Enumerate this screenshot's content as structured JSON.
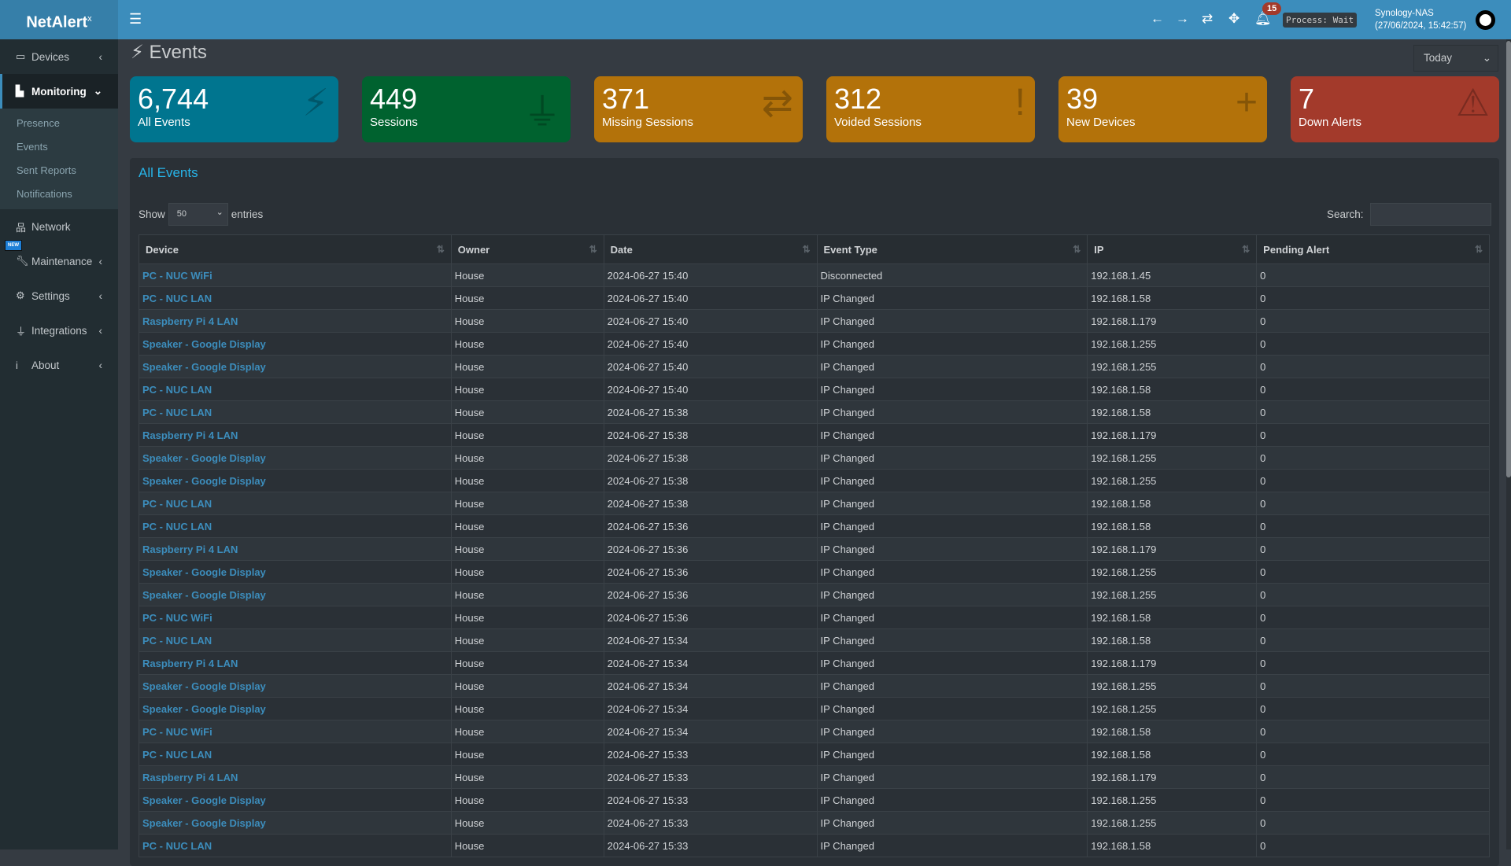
{
  "app": {
    "logo": "NetAlert",
    "logo_sup": "x"
  },
  "header": {
    "notif_count": "15",
    "process": "Process: Wait",
    "host": "Synology-NAS",
    "datetime": "(27/06/2024, 15:42:57)"
  },
  "sidebar": {
    "items": [
      {
        "label": "Devices",
        "icon": "laptop-icon"
      },
      {
        "label": "Monitoring",
        "icon": "chart-icon",
        "sub": [
          "Presence",
          "Events",
          "Sent Reports",
          "Notifications"
        ]
      },
      {
        "label": "Network",
        "icon": "network-icon"
      },
      {
        "label": "Maintenance",
        "icon": "wrench-icon",
        "badge": "NEW"
      },
      {
        "label": "Settings",
        "icon": "gear-icon"
      },
      {
        "label": "Integrations",
        "icon": "plug-icon"
      },
      {
        "label": "About",
        "icon": "info-icon"
      }
    ]
  },
  "page": {
    "title": "Events",
    "period": "Today"
  },
  "cards": [
    {
      "value": "6,744",
      "label": "All Events",
      "color": "#00758f"
    },
    {
      "value": "449",
      "label": "Sessions",
      "color": "#00622f"
    },
    {
      "value": "371",
      "label": "Missing Sessions",
      "color": "#b3720a"
    },
    {
      "value": "312",
      "label": "Voided Sessions",
      "color": "#b3720a"
    },
    {
      "value": "39",
      "label": "New Devices",
      "color": "#b3720a"
    },
    {
      "value": "7",
      "label": "Down Alerts",
      "color": "#a33a2b"
    }
  ],
  "table": {
    "title": "All Events",
    "show": "Show",
    "entries_value": "50",
    "entries": "entries",
    "search_label": "Search:",
    "columns": [
      "Device",
      "Owner",
      "Date",
      "Event Type",
      "IP",
      "Pending Alert"
    ],
    "rows": [
      [
        "PC - NUC WiFi",
        "House",
        "2024-06-27  15:40",
        "Disconnected",
        "192.168.1.45",
        "0"
      ],
      [
        "PC - NUC LAN",
        "House",
        "2024-06-27  15:40",
        "IP Changed",
        "192.168.1.58",
        "0"
      ],
      [
        "Raspberry Pi 4 LAN",
        "House",
        "2024-06-27  15:40",
        "IP Changed",
        "192.168.1.179",
        "0"
      ],
      [
        "Speaker - Google Display",
        "House",
        "2024-06-27  15:40",
        "IP Changed",
        "192.168.1.255",
        "0"
      ],
      [
        "Speaker - Google Display",
        "House",
        "2024-06-27  15:40",
        "IP Changed",
        "192.168.1.255",
        "0"
      ],
      [
        "PC - NUC LAN",
        "House",
        "2024-06-27  15:40",
        "IP Changed",
        "192.168.1.58",
        "0"
      ],
      [
        "PC - NUC LAN",
        "House",
        "2024-06-27  15:38",
        "IP Changed",
        "192.168.1.58",
        "0"
      ],
      [
        "Raspberry Pi 4 LAN",
        "House",
        "2024-06-27  15:38",
        "IP Changed",
        "192.168.1.179",
        "0"
      ],
      [
        "Speaker - Google Display",
        "House",
        "2024-06-27  15:38",
        "IP Changed",
        "192.168.1.255",
        "0"
      ],
      [
        "Speaker - Google Display",
        "House",
        "2024-06-27  15:38",
        "IP Changed",
        "192.168.1.255",
        "0"
      ],
      [
        "PC - NUC LAN",
        "House",
        "2024-06-27  15:38",
        "IP Changed",
        "192.168.1.58",
        "0"
      ],
      [
        "PC - NUC LAN",
        "House",
        "2024-06-27  15:36",
        "IP Changed",
        "192.168.1.58",
        "0"
      ],
      [
        "Raspberry Pi 4 LAN",
        "House",
        "2024-06-27  15:36",
        "IP Changed",
        "192.168.1.179",
        "0"
      ],
      [
        "Speaker - Google Display",
        "House",
        "2024-06-27  15:36",
        "IP Changed",
        "192.168.1.255",
        "0"
      ],
      [
        "Speaker - Google Display",
        "House",
        "2024-06-27  15:36",
        "IP Changed",
        "192.168.1.255",
        "0"
      ],
      [
        "PC - NUC WiFi",
        "House",
        "2024-06-27  15:36",
        "IP Changed",
        "192.168.1.58",
        "0"
      ],
      [
        "PC - NUC LAN",
        "House",
        "2024-06-27  15:34",
        "IP Changed",
        "192.168.1.58",
        "0"
      ],
      [
        "Raspberry Pi 4 LAN",
        "House",
        "2024-06-27  15:34",
        "IP Changed",
        "192.168.1.179",
        "0"
      ],
      [
        "Speaker - Google Display",
        "House",
        "2024-06-27  15:34",
        "IP Changed",
        "192.168.1.255",
        "0"
      ],
      [
        "Speaker - Google Display",
        "House",
        "2024-06-27  15:34",
        "IP Changed",
        "192.168.1.255",
        "0"
      ],
      [
        "PC - NUC WiFi",
        "House",
        "2024-06-27  15:34",
        "IP Changed",
        "192.168.1.58",
        "0"
      ],
      [
        "PC - NUC LAN",
        "House",
        "2024-06-27  15:33",
        "IP Changed",
        "192.168.1.58",
        "0"
      ],
      [
        "Raspberry Pi 4 LAN",
        "House",
        "2024-06-27  15:33",
        "IP Changed",
        "192.168.1.179",
        "0"
      ],
      [
        "Speaker - Google Display",
        "House",
        "2024-06-27  15:33",
        "IP Changed",
        "192.168.1.255",
        "0"
      ],
      [
        "Speaker - Google Display",
        "House",
        "2024-06-27  15:33",
        "IP Changed",
        "192.168.1.255",
        "0"
      ],
      [
        "PC - NUC LAN",
        "House",
        "2024-06-27  15:33",
        "IP Changed",
        "192.168.1.58",
        "0"
      ]
    ]
  }
}
